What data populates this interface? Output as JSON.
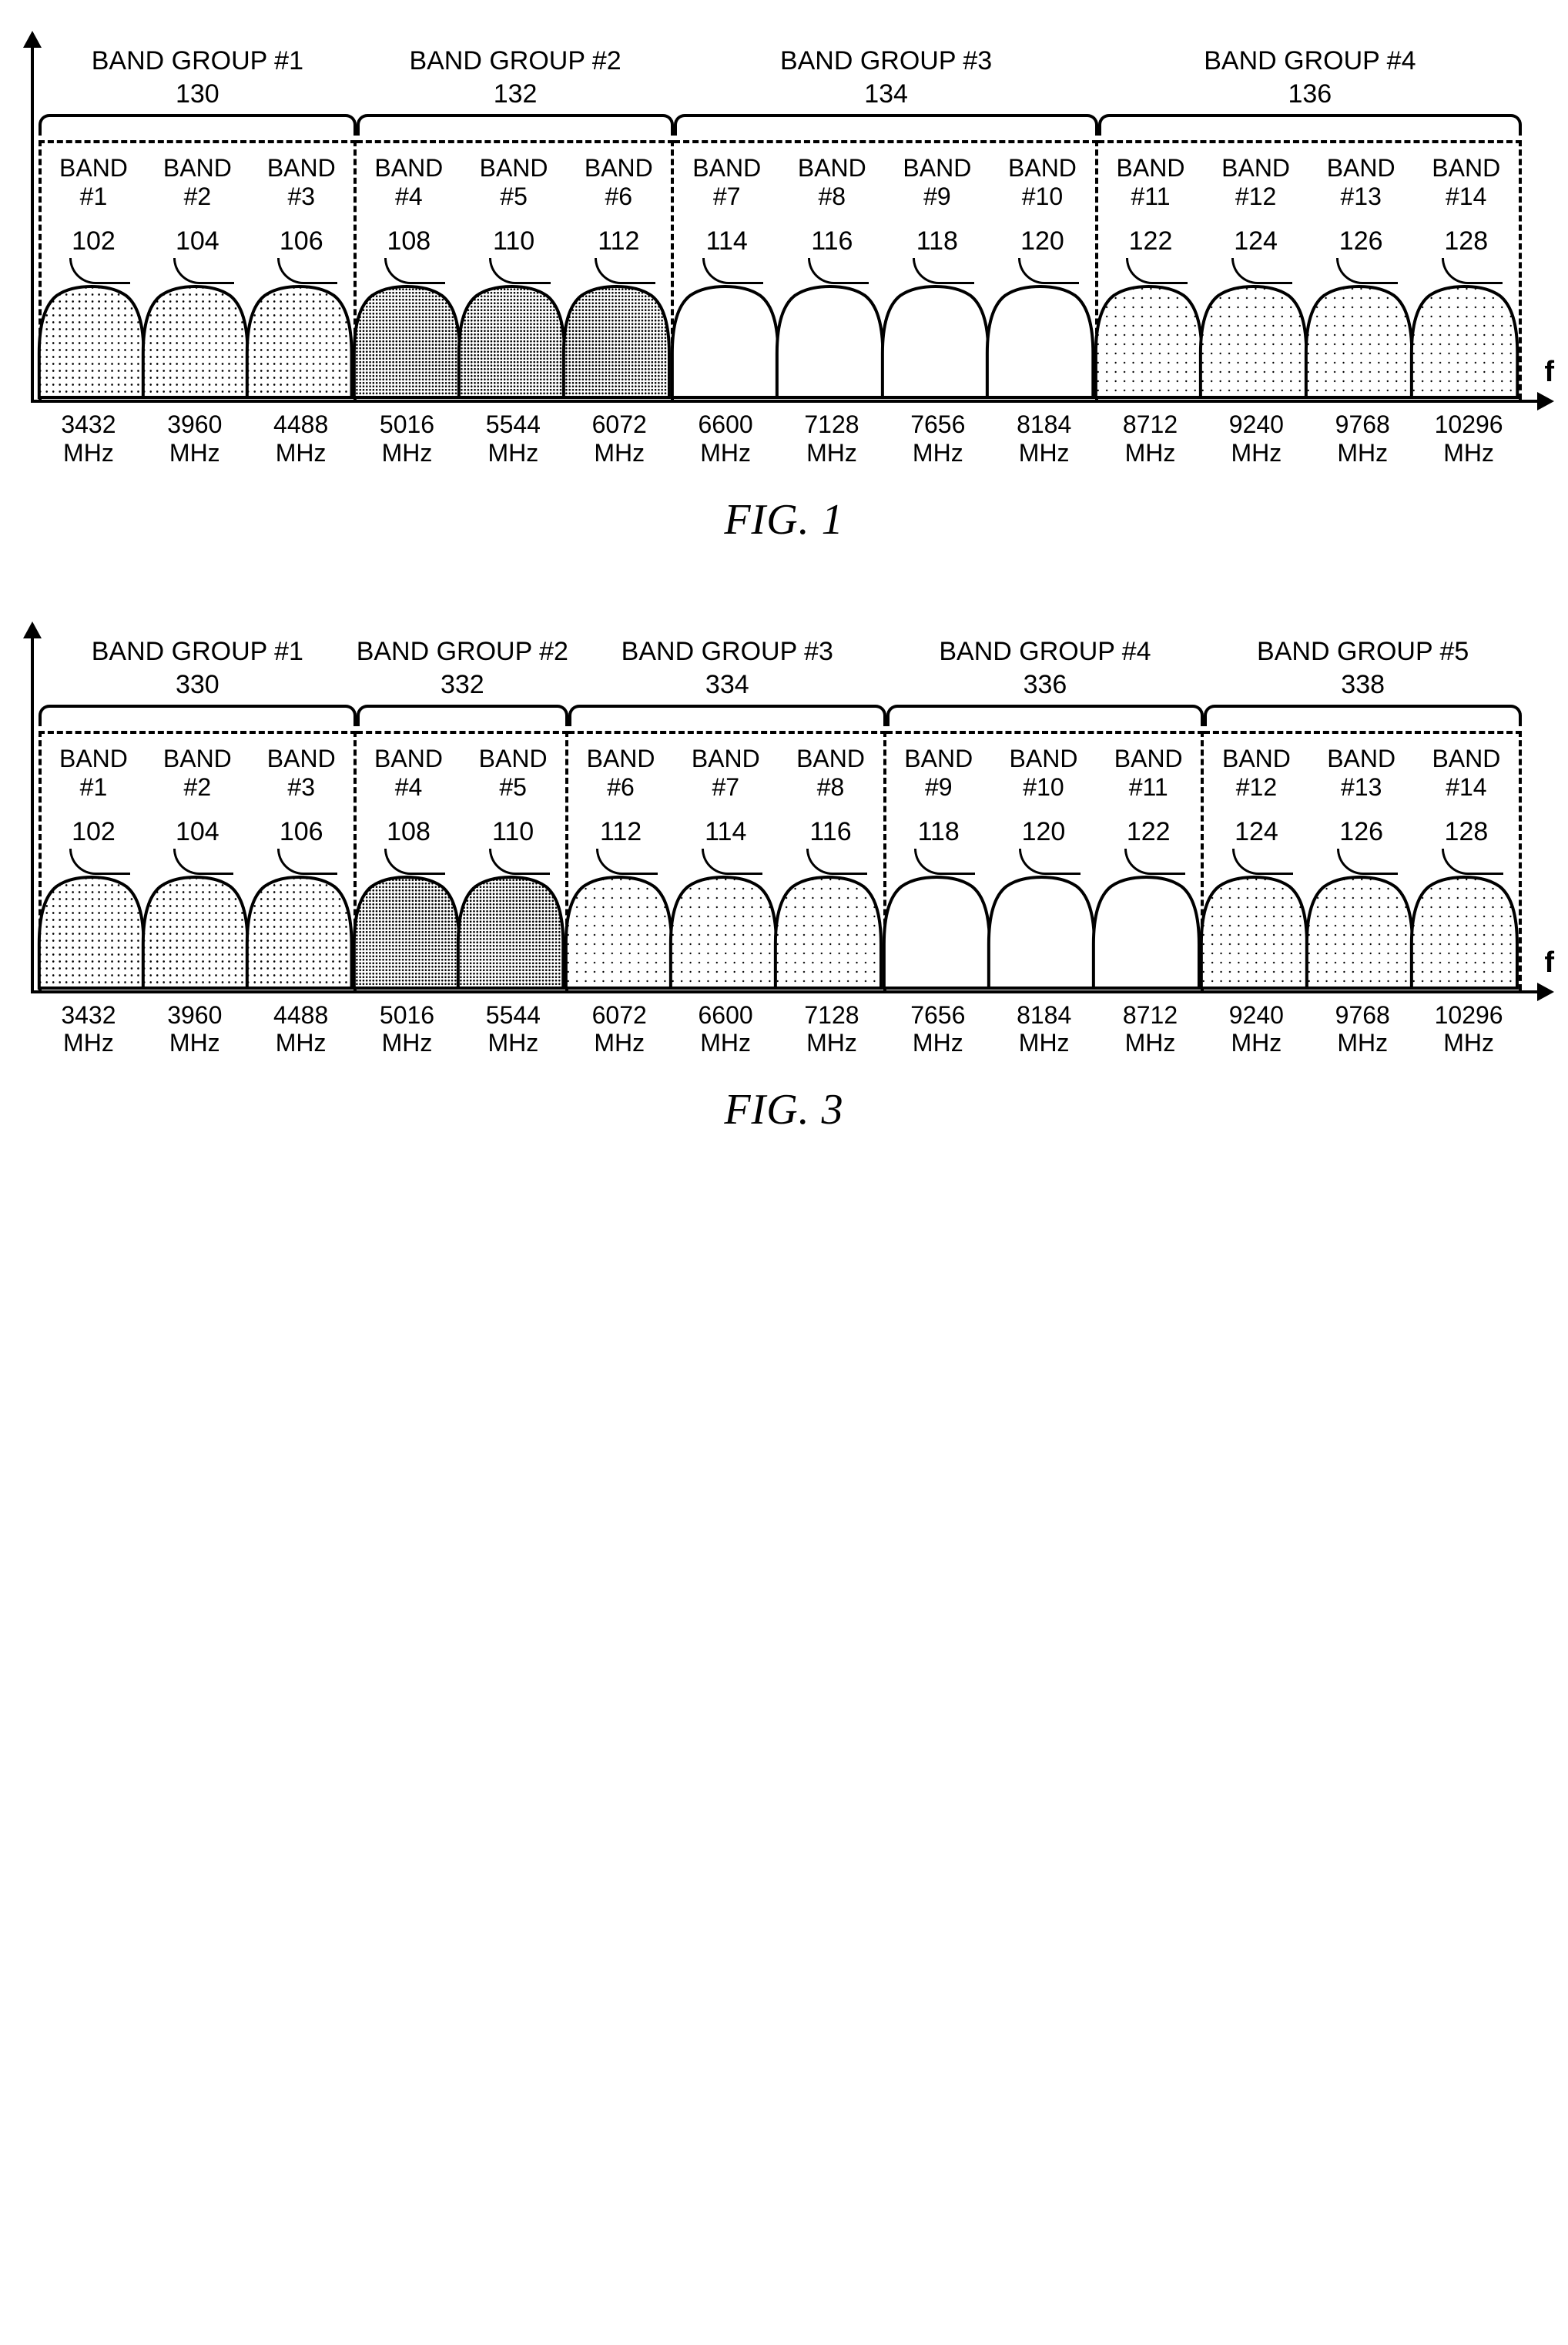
{
  "axis_label": "f",
  "colors": {
    "axis": "#000000",
    "fill_light_dots": "#f2f2f2",
    "fill_dense_dots": "#cfcfcf",
    "fill_white": "#ffffff",
    "fill_sparse_dots": "#eeeeee",
    "stroke": "#000000"
  },
  "patterns": {
    "light": {
      "radius": 0.9,
      "spacing": 6
    },
    "dense": {
      "radius": 0.9,
      "spacing": 3
    },
    "sparse": {
      "radius": 0.8,
      "spacing": 8
    }
  },
  "bands": [
    {
      "idx": 1,
      "label": "BAND",
      "num": "#1",
      "ref": 102,
      "freq": "3432",
      "unit": "MHz"
    },
    {
      "idx": 2,
      "label": "BAND",
      "num": "#2",
      "ref": 104,
      "freq": "3960",
      "unit": "MHz"
    },
    {
      "idx": 3,
      "label": "BAND",
      "num": "#3",
      "ref": 106,
      "freq": "4488",
      "unit": "MHz"
    },
    {
      "idx": 4,
      "label": "BAND",
      "num": "#4",
      "ref": 108,
      "freq": "5016",
      "unit": "MHz"
    },
    {
      "idx": 5,
      "label": "BAND",
      "num": "#5",
      "ref": 110,
      "freq": "5544",
      "unit": "MHz"
    },
    {
      "idx": 6,
      "label": "BAND",
      "num": "#6",
      "ref": 112,
      "freq": "6072",
      "unit": "MHz"
    },
    {
      "idx": 7,
      "label": "BAND",
      "num": "#7",
      "ref": 114,
      "freq": "6600",
      "unit": "MHz"
    },
    {
      "idx": 8,
      "label": "BAND",
      "num": "#8",
      "ref": 116,
      "freq": "7128",
      "unit": "MHz"
    },
    {
      "idx": 9,
      "label": "BAND",
      "num": "#9",
      "ref": 118,
      "freq": "7656",
      "unit": "MHz"
    },
    {
      "idx": 10,
      "label": "BAND",
      "num": "#10",
      "ref": 120,
      "freq": "8184",
      "unit": "MHz"
    },
    {
      "idx": 11,
      "label": "BAND",
      "num": "#11",
      "ref": 122,
      "freq": "8712",
      "unit": "MHz"
    },
    {
      "idx": 12,
      "label": "BAND",
      "num": "#12",
      "ref": 124,
      "freq": "9240",
      "unit": "MHz"
    },
    {
      "idx": 13,
      "label": "BAND",
      "num": "#13",
      "ref": 126,
      "freq": "9768",
      "unit": "MHz"
    },
    {
      "idx": 14,
      "label": "BAND",
      "num": "#14",
      "ref": 128,
      "freq": "10296",
      "unit": "MHz"
    }
  ],
  "figures": [
    {
      "caption": "FIG. 1",
      "groups": [
        {
          "title": "BAND GROUP #1",
          "id": 130,
          "bands": [
            1,
            2,
            3
          ],
          "pattern": "light"
        },
        {
          "title": "BAND GROUP #2",
          "id": 132,
          "bands": [
            4,
            5,
            6
          ],
          "pattern": "dense"
        },
        {
          "title": "BAND GROUP #3",
          "id": 134,
          "bands": [
            7,
            8,
            9,
            10
          ],
          "pattern": "none"
        },
        {
          "title": "BAND GROUP #4",
          "id": 136,
          "bands": [
            11,
            12,
            13,
            14
          ],
          "pattern": "sparse"
        }
      ]
    },
    {
      "caption": "FIG. 3",
      "groups": [
        {
          "title": "BAND GROUP #1",
          "id": 330,
          "bands": [
            1,
            2,
            3
          ],
          "pattern": "light"
        },
        {
          "title": "BAND GROUP #2",
          "id": 332,
          "bands": [
            4,
            5
          ],
          "pattern": "dense"
        },
        {
          "title": "BAND GROUP #3",
          "id": 334,
          "bands": [
            6,
            7,
            8
          ],
          "pattern": "sparse"
        },
        {
          "title": "BAND GROUP #4",
          "id": 336,
          "bands": [
            9,
            10,
            11
          ],
          "pattern": "none"
        },
        {
          "title": "BAND GROUP #5",
          "id": 338,
          "bands": [
            12,
            13,
            14
          ],
          "pattern": "sparse"
        }
      ]
    }
  ]
}
